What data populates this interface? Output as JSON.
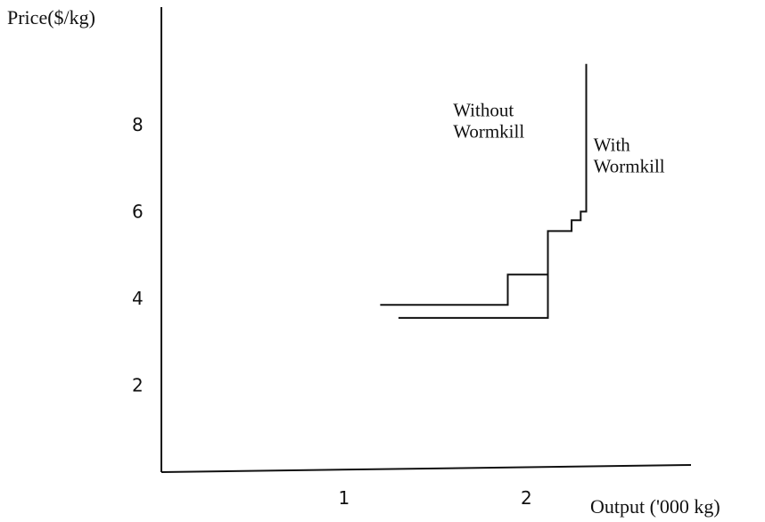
{
  "chart_data": {
    "type": "line",
    "title": "",
    "xlabel": "Output ('000 kg)",
    "ylabel": "Price($/kg)",
    "xlim": [
      0,
      3.6
    ],
    "ylim": [
      0,
      10
    ],
    "x_ticks": [
      "1",
      "2"
    ],
    "y_ticks": [
      "2",
      "4",
      "6",
      "8"
    ],
    "grid": false,
    "series": [
      {
        "name": "Without Wormkill",
        "x": [
          1.2,
          1.9,
          1.9,
          2.12,
          2.12,
          2.25,
          2.25,
          2.3,
          2.3,
          2.33,
          2.33
        ],
        "y": [
          3.85,
          3.85,
          4.55,
          4.55,
          5.55,
          5.55,
          5.8,
          5.8,
          6.0,
          6.0,
          9.4
        ]
      },
      {
        "name": "With Wormkill",
        "x": [
          1.3,
          2.12,
          2.12
        ],
        "y": [
          3.55,
          3.55,
          4.55
        ]
      }
    ],
    "annotations": [
      {
        "text_lines": [
          "Without",
          "Wormkill"
        ],
        "x": 1.6,
        "y": 8.2
      },
      {
        "text_lines": [
          "With",
          "Wormkill"
        ],
        "x": 2.37,
        "y": 7.4
      }
    ]
  }
}
